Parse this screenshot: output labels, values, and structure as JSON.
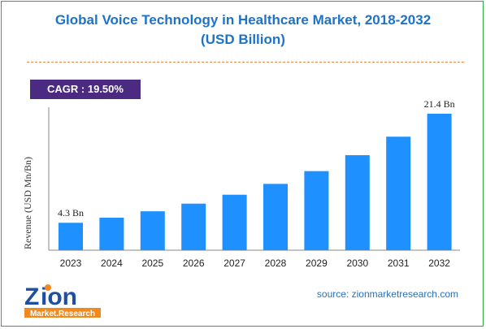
{
  "title_line1": "Global Voice Technology in Healthcare Market, 2018-2032",
  "title_line2": "(USD Billion)",
  "cagr_label": "CAGR : 19.50%",
  "source": "source: zionmarketresearch.com",
  "logo": {
    "word": "ion",
    "initial": "Z",
    "subline": "Market.Research"
  },
  "colors": {
    "bar": "#1e90ff",
    "title": "#1d73c8",
    "cagr_bg": "#4b2a82",
    "border": "#2ea84a",
    "divider": "#e58a4a"
  },
  "chart_data": {
    "type": "bar",
    "categories": [
      "2023",
      "2024",
      "2025",
      "2026",
      "2027",
      "2028",
      "2029",
      "2030",
      "2031",
      "2032"
    ],
    "values": [
      4.3,
      5.1,
      6.1,
      7.3,
      8.7,
      10.4,
      12.4,
      14.9,
      17.8,
      21.4
    ],
    "data_labels": {
      "2023": "4.3 Bn",
      "2032": "21.4 Bn"
    },
    "ylabel": "Revenue (USD Mn/Bn)",
    "xlabel": "",
    "ylim": [
      0,
      21.4
    ]
  }
}
